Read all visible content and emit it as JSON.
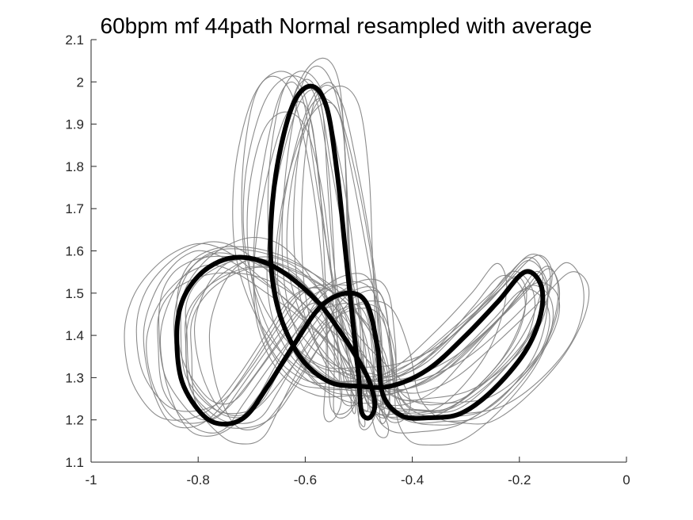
{
  "chart_data": {
    "type": "line",
    "title": "60bpm mf 44path Normal resampled with average",
    "xlabel": "",
    "ylabel": "",
    "xlim": [
      -1,
      0
    ],
    "ylim": [
      1.1,
      2.1
    ],
    "x_ticks": [
      -1,
      -0.8,
      -0.6,
      -0.4,
      -0.2,
      0
    ],
    "x_tick_labels": [
      "-1",
      "-0.8",
      "-0.6",
      "-0.4",
      "-0.2",
      "0"
    ],
    "y_ticks": [
      1.1,
      1.2,
      1.3,
      1.4,
      1.5,
      1.6,
      1.7,
      1.8,
      1.9,
      2.0,
      2.1
    ],
    "y_tick_labels": [
      "1.1",
      "1.2",
      "1.3",
      "1.4",
      "1.5",
      "1.6",
      "1.7",
      "1.8",
      "1.9",
      "2",
      "2.1"
    ],
    "grid": false,
    "series": [
      {
        "role": "average",
        "color": "#000000",
        "points": [
          [
            -0.84,
            1.4
          ],
          [
            -0.83,
            1.48
          ],
          [
            -0.8,
            1.54
          ],
          [
            -0.76,
            1.575
          ],
          [
            -0.72,
            1.585
          ],
          [
            -0.67,
            1.57
          ],
          [
            -0.62,
            1.53
          ],
          [
            -0.57,
            1.47
          ],
          [
            -0.53,
            1.4
          ],
          [
            -0.5,
            1.34
          ],
          [
            -0.48,
            1.29
          ],
          [
            -0.47,
            1.235
          ],
          [
            -0.48,
            1.205
          ],
          [
            -0.495,
            1.22
          ],
          [
            -0.5,
            1.3
          ],
          [
            -0.51,
            1.42
          ],
          [
            -0.525,
            1.6
          ],
          [
            -0.54,
            1.78
          ],
          [
            -0.56,
            1.94
          ],
          [
            -0.59,
            1.99
          ],
          [
            -0.625,
            1.94
          ],
          [
            -0.655,
            1.78
          ],
          [
            -0.665,
            1.6
          ],
          [
            -0.65,
            1.46
          ],
          [
            -0.61,
            1.35
          ],
          [
            -0.555,
            1.29
          ],
          [
            -0.5,
            1.28
          ],
          [
            -0.44,
            1.28
          ],
          [
            -0.37,
            1.32
          ],
          [
            -0.3,
            1.4
          ],
          [
            -0.24,
            1.48
          ],
          [
            -0.19,
            1.55
          ],
          [
            -0.16,
            1.52
          ],
          [
            -0.16,
            1.45
          ],
          [
            -0.19,
            1.36
          ],
          [
            -0.25,
            1.27
          ],
          [
            -0.31,
            1.215
          ],
          [
            -0.37,
            1.205
          ],
          [
            -0.42,
            1.21
          ],
          [
            -0.455,
            1.26
          ],
          [
            -0.465,
            1.37
          ],
          [
            -0.485,
            1.475
          ],
          [
            -0.52,
            1.5
          ],
          [
            -0.57,
            1.47
          ],
          [
            -0.62,
            1.38
          ],
          [
            -0.67,
            1.28
          ],
          [
            -0.71,
            1.21
          ],
          [
            -0.75,
            1.19
          ],
          [
            -0.79,
            1.21
          ],
          [
            -0.83,
            1.29
          ],
          [
            -0.84,
            1.4
          ]
        ]
      },
      {
        "role": "trial",
        "color": "#808080",
        "dx": 0.0,
        "dy": 0.0,
        "sx": 1.1,
        "sy": 1.08
      },
      {
        "role": "trial",
        "color": "#808080",
        "dx": -0.03,
        "dy": 0.01,
        "sx": 1.05,
        "sy": 1.0
      },
      {
        "role": "trial",
        "color": "#808080",
        "dx": 0.02,
        "dy": -0.02,
        "sx": 1.0,
        "sy": 0.95
      },
      {
        "role": "trial",
        "color": "#808080",
        "dx": -0.05,
        "dy": 0.02,
        "sx": 1.12,
        "sy": 1.03
      },
      {
        "role": "trial",
        "color": "#808080",
        "dx": 0.04,
        "dy": 0.0,
        "sx": 0.95,
        "sy": 1.02
      },
      {
        "role": "trial",
        "color": "#808080",
        "dx": -0.02,
        "dy": -0.03,
        "sx": 1.08,
        "sy": 0.98
      },
      {
        "role": "trial",
        "color": "#808080",
        "dx": 0.01,
        "dy": 0.03,
        "sx": 0.98,
        "sy": 1.05
      },
      {
        "role": "trial",
        "color": "#808080",
        "dx": -0.04,
        "dy": -0.01,
        "sx": 1.03,
        "sy": 0.92
      },
      {
        "role": "trial",
        "color": "#808080",
        "dx": 0.03,
        "dy": 0.02,
        "sx": 1.15,
        "sy": 1.06
      },
      {
        "role": "trial",
        "color": "#808080",
        "dx": -0.01,
        "dy": 0.0,
        "sx": 0.92,
        "sy": 0.97
      },
      {
        "role": "trial",
        "color": "#808080",
        "dx": 0.05,
        "dy": -0.01,
        "sx": 1.07,
        "sy": 1.01
      },
      {
        "role": "trial",
        "color": "#808080",
        "dx": -0.06,
        "dy": 0.01,
        "sx": 1.0,
        "sy": 1.04
      },
      {
        "role": "trial",
        "color": "#808080",
        "dx": 0.0,
        "dy": 0.04,
        "sx": 1.04,
        "sy": 0.96
      },
      {
        "role": "trial",
        "color": "#808080",
        "dx": 0.02,
        "dy": -0.04,
        "sx": 0.97,
        "sy": 1.07
      },
      {
        "role": "trial",
        "color": "#808080",
        "dx": -0.03,
        "dy": 0.03,
        "sx": 1.11,
        "sy": 0.99
      },
      {
        "role": "trial",
        "color": "#808080",
        "dx": 0.035,
        "dy": 0.015,
        "sx": 1.02,
        "sy": 0.94
      }
    ]
  }
}
